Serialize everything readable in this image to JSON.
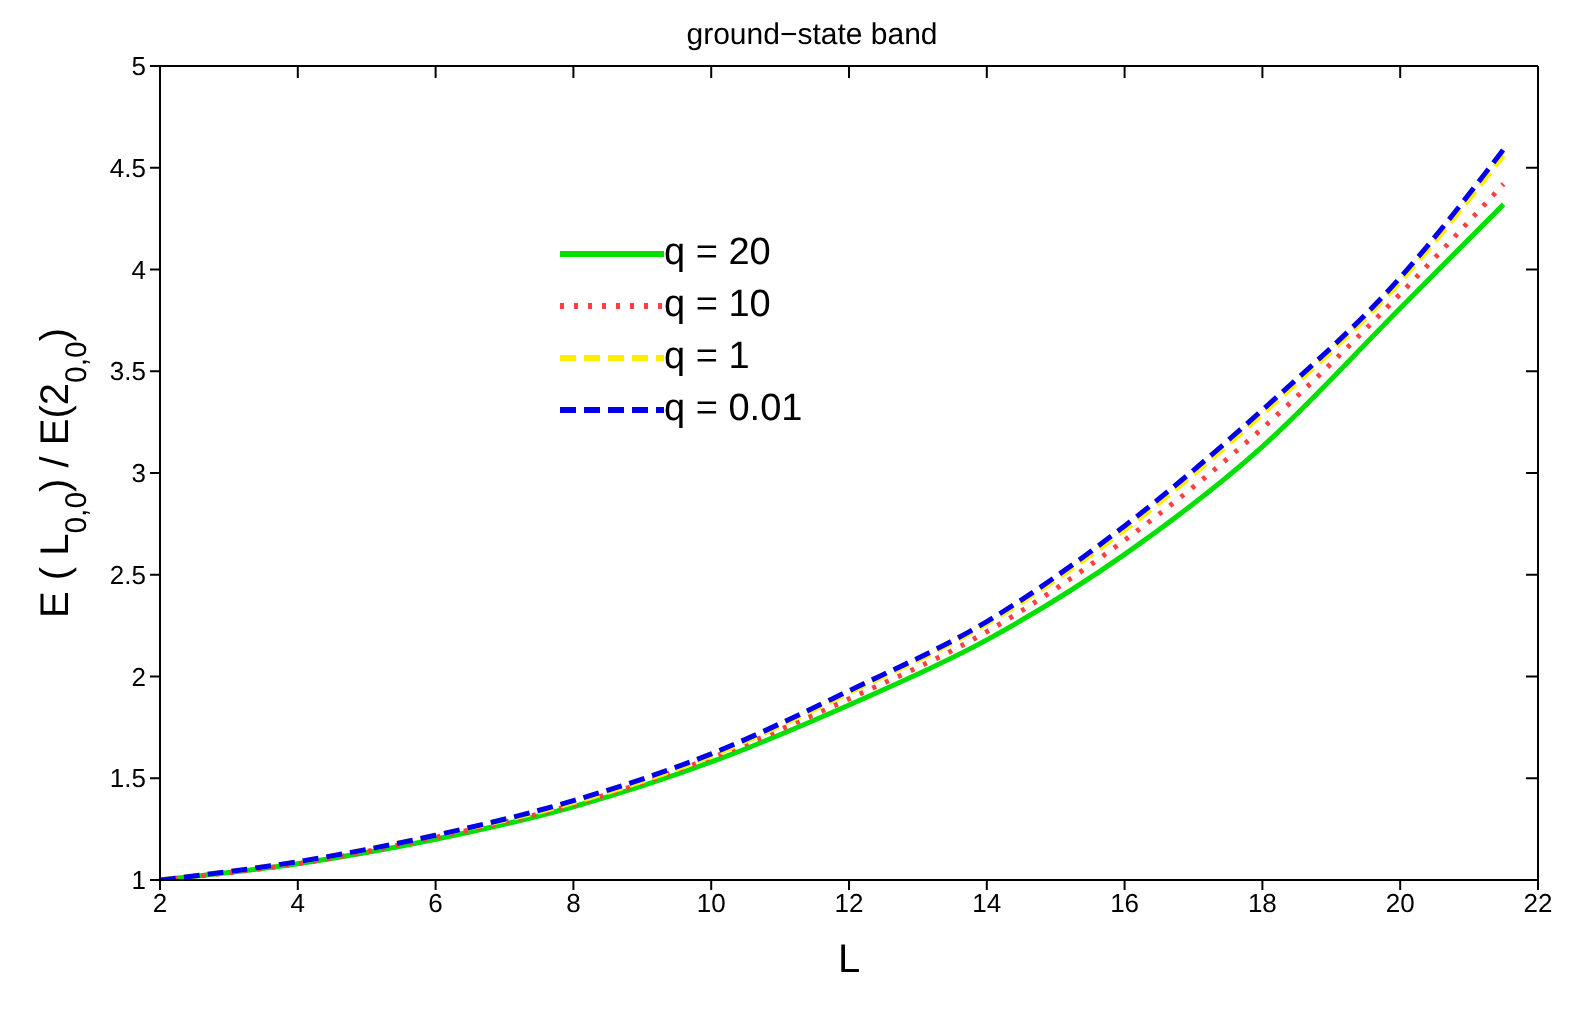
{
  "chart_data": {
    "type": "line",
    "title": "ground−state band",
    "xlabel": "L",
    "ylabel": "E ( L$_{0,0}$) / E(2$_{0,0}$)",
    "x": [
      2,
      4,
      6,
      8,
      10,
      12,
      14,
      16,
      18,
      20,
      21.5
    ],
    "series": [
      {
        "name": "q = 20",
        "color": "#00e000",
        "line_style": "solid",
        "values": [
          1,
          1.08,
          1.2,
          1.36,
          1.58,
          1.86,
          2.18,
          2.6,
          3.13,
          3.81,
          4.32
        ]
      },
      {
        "name": "q = 10",
        "color": "#ff4040",
        "line_style": "dotted",
        "values": [
          1,
          1.08,
          1.21,
          1.37,
          1.6,
          1.89,
          2.22,
          2.67,
          3.22,
          3.88,
          4.42
        ]
      },
      {
        "name": "q = 1",
        "color": "#ffee00",
        "line_style": "dashed",
        "values": [
          1,
          1.09,
          1.22,
          1.38,
          1.61,
          1.92,
          2.26,
          2.72,
          3.29,
          3.94,
          4.56
        ]
      },
      {
        "name": "q = 0.01",
        "color": "#0000ee",
        "line_style": "dashed",
        "values": [
          1,
          1.09,
          1.22,
          1.39,
          1.62,
          1.93,
          2.27,
          2.74,
          3.31,
          3.96,
          4.59
        ]
      }
    ],
    "xlim": [
      2,
      22
    ],
    "xticks": [
      2,
      4,
      6,
      8,
      10,
      12,
      14,
      16,
      18,
      20,
      22
    ],
    "ylim": [
      1,
      5
    ],
    "yticks": [
      1,
      1.5,
      2,
      2.5,
      3,
      3.5,
      4,
      4.5,
      5
    ],
    "legend": "top left",
    "grid": false,
    "marker": "none"
  }
}
